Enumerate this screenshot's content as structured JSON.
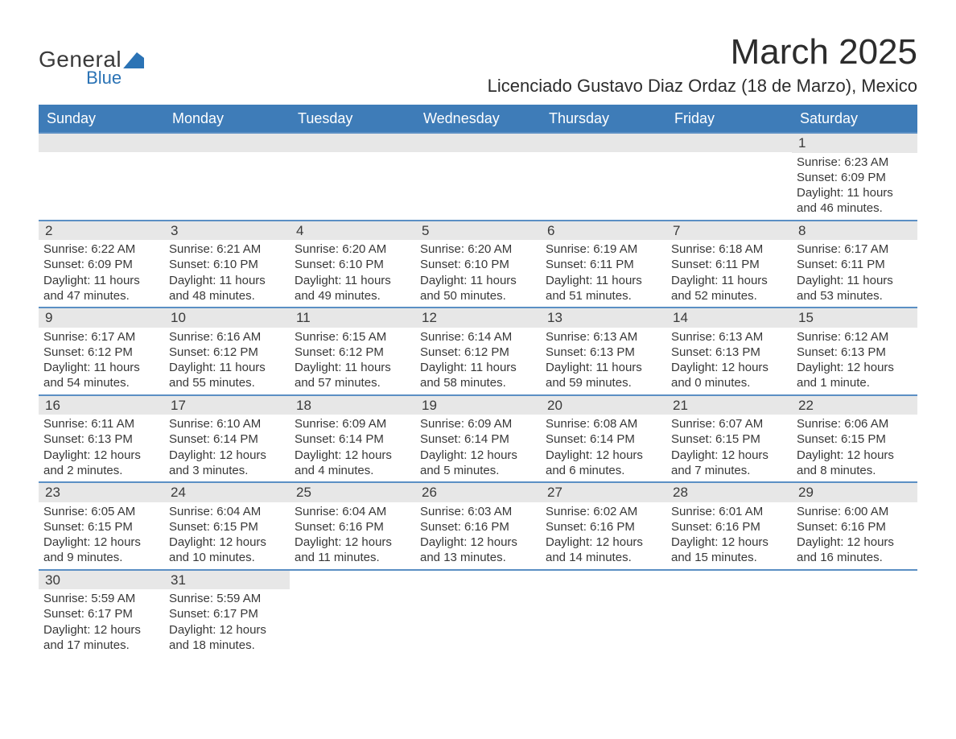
{
  "header": {
    "logo_general": "General",
    "logo_blue": "Blue",
    "month_title": "March 2025",
    "location": "Licenciado Gustavo Diaz Ordaz (18 de Marzo), Mexico"
  },
  "colors": {
    "header_bg": "#3e7cb8",
    "row_divider": "#5b8fc4",
    "daynum_bg": "#e7e7e7",
    "logo_accent": "#2b73b5",
    "text": "#333333"
  },
  "days_of_week": [
    "Sunday",
    "Monday",
    "Tuesday",
    "Wednesday",
    "Thursday",
    "Friday",
    "Saturday"
  ],
  "weeks": [
    [
      null,
      null,
      null,
      null,
      null,
      null,
      {
        "n": "1",
        "sunrise": "Sunrise: 6:23 AM",
        "sunset": "Sunset: 6:09 PM",
        "d1": "Daylight: 11 hours",
        "d2": "and 46 minutes."
      }
    ],
    [
      {
        "n": "2",
        "sunrise": "Sunrise: 6:22 AM",
        "sunset": "Sunset: 6:09 PM",
        "d1": "Daylight: 11 hours",
        "d2": "and 47 minutes."
      },
      {
        "n": "3",
        "sunrise": "Sunrise: 6:21 AM",
        "sunset": "Sunset: 6:10 PM",
        "d1": "Daylight: 11 hours",
        "d2": "and 48 minutes."
      },
      {
        "n": "4",
        "sunrise": "Sunrise: 6:20 AM",
        "sunset": "Sunset: 6:10 PM",
        "d1": "Daylight: 11 hours",
        "d2": "and 49 minutes."
      },
      {
        "n": "5",
        "sunrise": "Sunrise: 6:20 AM",
        "sunset": "Sunset: 6:10 PM",
        "d1": "Daylight: 11 hours",
        "d2": "and 50 minutes."
      },
      {
        "n": "6",
        "sunrise": "Sunrise: 6:19 AM",
        "sunset": "Sunset: 6:11 PM",
        "d1": "Daylight: 11 hours",
        "d2": "and 51 minutes."
      },
      {
        "n": "7",
        "sunrise": "Sunrise: 6:18 AM",
        "sunset": "Sunset: 6:11 PM",
        "d1": "Daylight: 11 hours",
        "d2": "and 52 minutes."
      },
      {
        "n": "8",
        "sunrise": "Sunrise: 6:17 AM",
        "sunset": "Sunset: 6:11 PM",
        "d1": "Daylight: 11 hours",
        "d2": "and 53 minutes."
      }
    ],
    [
      {
        "n": "9",
        "sunrise": "Sunrise: 6:17 AM",
        "sunset": "Sunset: 6:12 PM",
        "d1": "Daylight: 11 hours",
        "d2": "and 54 minutes."
      },
      {
        "n": "10",
        "sunrise": "Sunrise: 6:16 AM",
        "sunset": "Sunset: 6:12 PM",
        "d1": "Daylight: 11 hours",
        "d2": "and 55 minutes."
      },
      {
        "n": "11",
        "sunrise": "Sunrise: 6:15 AM",
        "sunset": "Sunset: 6:12 PM",
        "d1": "Daylight: 11 hours",
        "d2": "and 57 minutes."
      },
      {
        "n": "12",
        "sunrise": "Sunrise: 6:14 AM",
        "sunset": "Sunset: 6:12 PM",
        "d1": "Daylight: 11 hours",
        "d2": "and 58 minutes."
      },
      {
        "n": "13",
        "sunrise": "Sunrise: 6:13 AM",
        "sunset": "Sunset: 6:13 PM",
        "d1": "Daylight: 11 hours",
        "d2": "and 59 minutes."
      },
      {
        "n": "14",
        "sunrise": "Sunrise: 6:13 AM",
        "sunset": "Sunset: 6:13 PM",
        "d1": "Daylight: 12 hours",
        "d2": "and 0 minutes."
      },
      {
        "n": "15",
        "sunrise": "Sunrise: 6:12 AM",
        "sunset": "Sunset: 6:13 PM",
        "d1": "Daylight: 12 hours",
        "d2": "and 1 minute."
      }
    ],
    [
      {
        "n": "16",
        "sunrise": "Sunrise: 6:11 AM",
        "sunset": "Sunset: 6:13 PM",
        "d1": "Daylight: 12 hours",
        "d2": "and 2 minutes."
      },
      {
        "n": "17",
        "sunrise": "Sunrise: 6:10 AM",
        "sunset": "Sunset: 6:14 PM",
        "d1": "Daylight: 12 hours",
        "d2": "and 3 minutes."
      },
      {
        "n": "18",
        "sunrise": "Sunrise: 6:09 AM",
        "sunset": "Sunset: 6:14 PM",
        "d1": "Daylight: 12 hours",
        "d2": "and 4 minutes."
      },
      {
        "n": "19",
        "sunrise": "Sunrise: 6:09 AM",
        "sunset": "Sunset: 6:14 PM",
        "d1": "Daylight: 12 hours",
        "d2": "and 5 minutes."
      },
      {
        "n": "20",
        "sunrise": "Sunrise: 6:08 AM",
        "sunset": "Sunset: 6:14 PM",
        "d1": "Daylight: 12 hours",
        "d2": "and 6 minutes."
      },
      {
        "n": "21",
        "sunrise": "Sunrise: 6:07 AM",
        "sunset": "Sunset: 6:15 PM",
        "d1": "Daylight: 12 hours",
        "d2": "and 7 minutes."
      },
      {
        "n": "22",
        "sunrise": "Sunrise: 6:06 AM",
        "sunset": "Sunset: 6:15 PM",
        "d1": "Daylight: 12 hours",
        "d2": "and 8 minutes."
      }
    ],
    [
      {
        "n": "23",
        "sunrise": "Sunrise: 6:05 AM",
        "sunset": "Sunset: 6:15 PM",
        "d1": "Daylight: 12 hours",
        "d2": "and 9 minutes."
      },
      {
        "n": "24",
        "sunrise": "Sunrise: 6:04 AM",
        "sunset": "Sunset: 6:15 PM",
        "d1": "Daylight: 12 hours",
        "d2": "and 10 minutes."
      },
      {
        "n": "25",
        "sunrise": "Sunrise: 6:04 AM",
        "sunset": "Sunset: 6:16 PM",
        "d1": "Daylight: 12 hours",
        "d2": "and 11 minutes."
      },
      {
        "n": "26",
        "sunrise": "Sunrise: 6:03 AM",
        "sunset": "Sunset: 6:16 PM",
        "d1": "Daylight: 12 hours",
        "d2": "and 13 minutes."
      },
      {
        "n": "27",
        "sunrise": "Sunrise: 6:02 AM",
        "sunset": "Sunset: 6:16 PM",
        "d1": "Daylight: 12 hours",
        "d2": "and 14 minutes."
      },
      {
        "n": "28",
        "sunrise": "Sunrise: 6:01 AM",
        "sunset": "Sunset: 6:16 PM",
        "d1": "Daylight: 12 hours",
        "d2": "and 15 minutes."
      },
      {
        "n": "29",
        "sunrise": "Sunrise: 6:00 AM",
        "sunset": "Sunset: 6:16 PM",
        "d1": "Daylight: 12 hours",
        "d2": "and 16 minutes."
      }
    ],
    [
      {
        "n": "30",
        "sunrise": "Sunrise: 5:59 AM",
        "sunset": "Sunset: 6:17 PM",
        "d1": "Daylight: 12 hours",
        "d2": "and 17 minutes."
      },
      {
        "n": "31",
        "sunrise": "Sunrise: 5:59 AM",
        "sunset": "Sunset: 6:17 PM",
        "d1": "Daylight: 12 hours",
        "d2": "and 18 minutes."
      },
      null,
      null,
      null,
      null,
      null
    ]
  ]
}
